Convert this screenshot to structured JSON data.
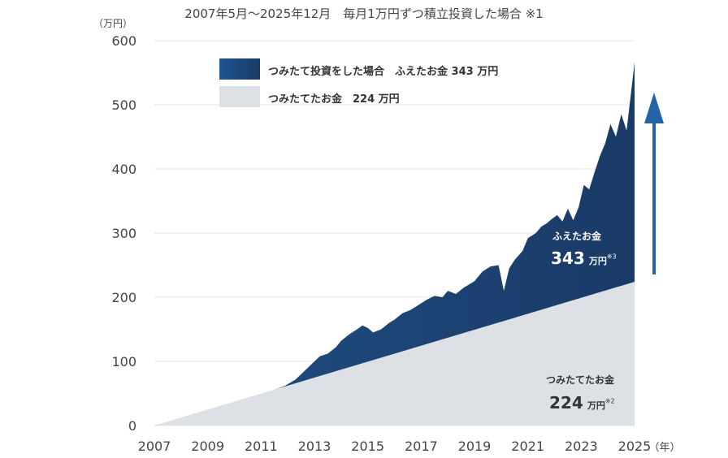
{
  "title": "2007年5月〜2025年12月　毎月1万円ずつ積立投資した場合 ※1",
  "colors": {
    "invest": "#1f4f85",
    "invest_dark": "#1a3a66",
    "saved": "#dde1e6",
    "arrow": "#2463a8",
    "grid": "#e6e6e6"
  },
  "legend": [
    {
      "label": "つみたて投資をした場合　ふえたお金 343 万円"
    },
    {
      "label": "つみたてたお金　224 万円"
    }
  ],
  "annotations": {
    "gain_label": "ふえたお金",
    "gain_value": "343",
    "gain_unit": "万円",
    "gain_note": "※3",
    "saved_label": "つみたてたお金",
    "saved_value": "224",
    "saved_unit": "万円",
    "saved_note": "※2"
  },
  "chart_data": {
    "type": "area",
    "ylabel": "（万円）",
    "xlabel": "（年）",
    "xlim": [
      2007,
      2025
    ],
    "ylim": [
      0,
      600
    ],
    "yticks": [
      0,
      100,
      200,
      300,
      400,
      500,
      600
    ],
    "xticks": [
      2007,
      2009,
      2011,
      2013,
      2015,
      2017,
      2019,
      2021,
      2023,
      2025
    ],
    "grid": true,
    "legend_position": "top",
    "series": [
      {
        "name": "つみたてたお金",
        "x": [
          2007.0,
          2025.0
        ],
        "values": [
          0,
          224
        ]
      },
      {
        "name": "つみたて投資をした場合",
        "x": [
          2007.0,
          2008.0,
          2009.0,
          2010.0,
          2011.0,
          2011.9,
          2012.3,
          2012.6,
          2012.9,
          2013.2,
          2013.5,
          2013.8,
          2014.0,
          2014.3,
          2014.6,
          2014.8,
          2015.0,
          2015.2,
          2015.5,
          2015.8,
          2016.0,
          2016.3,
          2016.6,
          2016.9,
          2017.2,
          2017.5,
          2017.8,
          2018.0,
          2018.3,
          2018.6,
          2018.8,
          2019.0,
          2019.3,
          2019.6,
          2019.9,
          2020.1,
          2020.3,
          2020.5,
          2020.8,
          2021.0,
          2021.3,
          2021.5,
          2021.7,
          2021.9,
          2022.1,
          2022.3,
          2022.5,
          2022.7,
          2022.9,
          2023.1,
          2023.3,
          2023.5,
          2023.7,
          2023.9,
          2024.1,
          2024.3,
          2024.5,
          2024.7,
          2024.9,
          2025.0
        ],
        "values": [
          0,
          10,
          20,
          34,
          48,
          62,
          72,
          84,
          96,
          108,
          112,
          122,
          132,
          142,
          150,
          156,
          152,
          145,
          150,
          160,
          165,
          175,
          180,
          188,
          196,
          202,
          200,
          210,
          205,
          215,
          220,
          225,
          240,
          248,
          250,
          210,
          245,
          258,
          272,
          292,
          300,
          310,
          315,
          322,
          328,
          318,
          338,
          320,
          340,
          375,
          368,
          395,
          420,
          440,
          470,
          450,
          485,
          460,
          530,
          566
        ]
      }
    ]
  }
}
